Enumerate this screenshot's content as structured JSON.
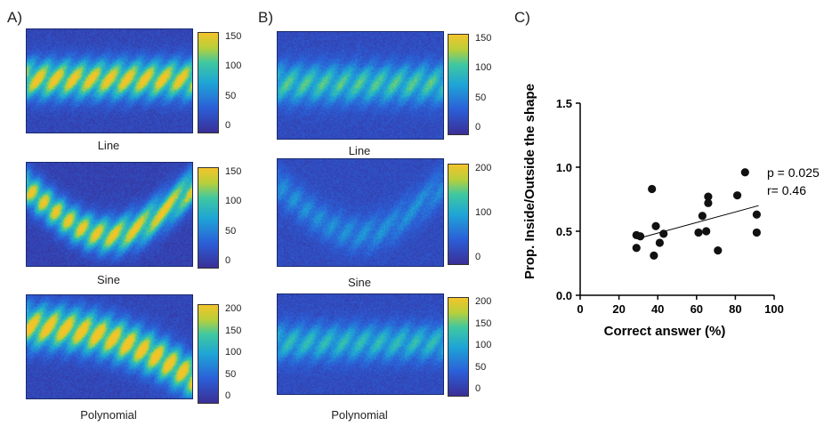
{
  "panels": {
    "a": {
      "label": "A)"
    },
    "b": {
      "label": "B)"
    },
    "c": {
      "label": "C)"
    }
  },
  "heatmaps": {
    "a_line": {
      "caption": "Line",
      "ticks": [
        "150",
        "100",
        "50",
        "0"
      ]
    },
    "a_sine": {
      "caption": "Sine",
      "ticks": [
        "150",
        "100",
        "50",
        "0"
      ]
    },
    "a_poly": {
      "caption": "Polynomial",
      "ticks": [
        "200",
        "150",
        "100",
        "50",
        "0"
      ]
    },
    "b_line": {
      "caption": "Line",
      "ticks": [
        "150",
        "100",
        "50",
        "0"
      ]
    },
    "b_sine": {
      "caption": "Sine",
      "ticks": [
        "200",
        "100",
        "0"
      ]
    },
    "b_poly": {
      "caption": "Polynomial",
      "ticks": [
        "200",
        "150",
        "100",
        "50",
        "0"
      ]
    }
  },
  "chart_data": {
    "type": "scatter",
    "xlabel": "Correct answer (%)",
    "ylabel": "Prop. Inside/Outside the shape",
    "xlim": [
      0,
      100
    ],
    "ylim": [
      0,
      1.5
    ],
    "xticks": [
      "0",
      "20",
      "40",
      "60",
      "80",
      "100"
    ],
    "yticks": [
      "0.0",
      "0.5",
      "1.0",
      "1.5"
    ],
    "points": [
      [
        29,
        0.47
      ],
      [
        29,
        0.37
      ],
      [
        31,
        0.46
      ],
      [
        37,
        0.83
      ],
      [
        38,
        0.31
      ],
      [
        39,
        0.54
      ],
      [
        41,
        0.41
      ],
      [
        43,
        0.48
      ],
      [
        61,
        0.49
      ],
      [
        63,
        0.62
      ],
      [
        65,
        0.5
      ],
      [
        66,
        0.72
      ],
      [
        66,
        0.77
      ],
      [
        71,
        0.35
      ],
      [
        81,
        0.78
      ],
      [
        85,
        0.96
      ],
      [
        91,
        0.63
      ],
      [
        91,
        0.49
      ]
    ],
    "fit_line": {
      "x": [
        29,
        92
      ],
      "y": [
        0.44,
        0.7
      ]
    },
    "annotations": [
      "p = 0.025",
      "r= 0.46"
    ],
    "grid": false
  }
}
